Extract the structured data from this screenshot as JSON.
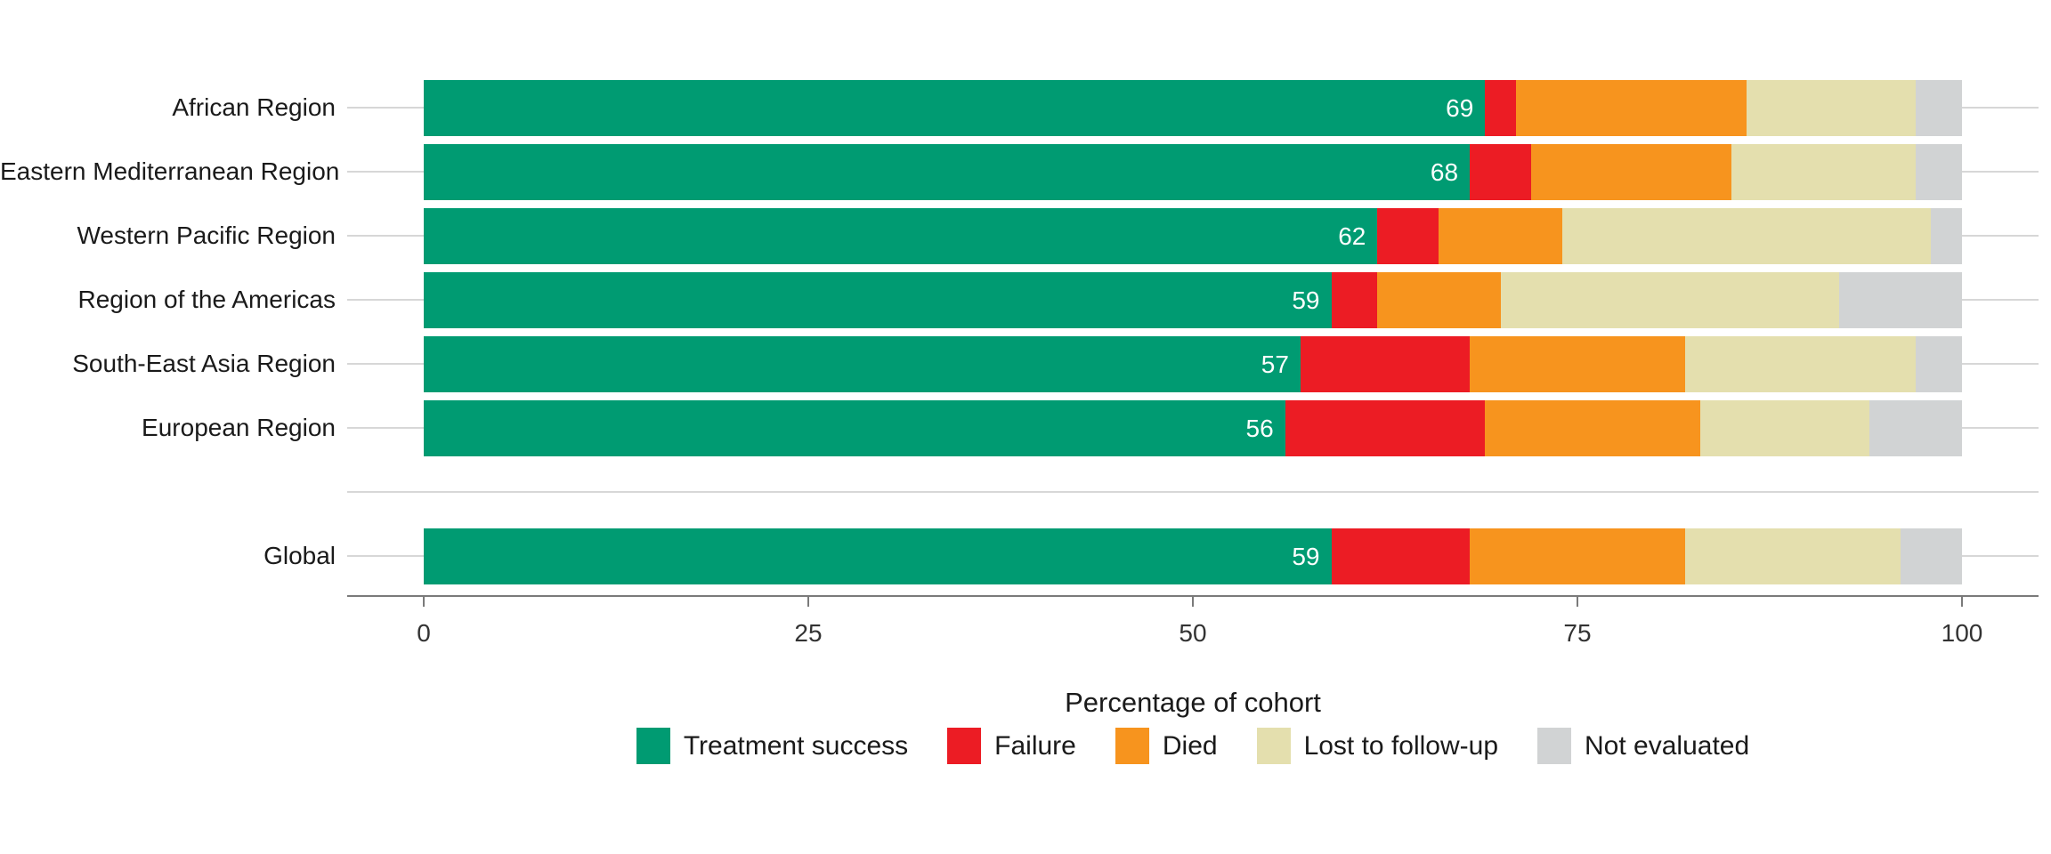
{
  "chart_data": {
    "type": "bar",
    "orientation": "horizontal",
    "stacked": true,
    "xlabel": "Percentage of cohort",
    "xlim": [
      0,
      100
    ],
    "xticks": [
      0,
      25,
      50,
      75,
      100
    ],
    "grid": "horizontal category lines",
    "legend_position": "bottom",
    "categories": [
      "African Region",
      "Eastern Mediterranean Region",
      "Western Pacific Region",
      "Region of the Americas",
      "South-East Asia Region",
      "European Region",
      "Global"
    ],
    "gap_before_category": "Global",
    "series": [
      {
        "name": "Treatment success",
        "color": "#009B72",
        "values": [
          69,
          68,
          62,
          59,
          57,
          56,
          59
        ],
        "labels_shown": true,
        "label_color": "#ffffff"
      },
      {
        "name": "Failure",
        "color": "#EC1C24",
        "values": [
          2,
          4,
          4,
          3,
          11,
          13,
          9
        ],
        "labels_shown": false
      },
      {
        "name": "Died",
        "color": "#F7941E",
        "values": [
          15,
          13,
          8,
          8,
          14,
          14,
          14
        ],
        "labels_shown": false
      },
      {
        "name": "Lost to follow-up",
        "color": "#E4DFAE",
        "values": [
          11,
          12,
          24,
          22,
          15,
          11,
          14
        ],
        "labels_shown": false
      },
      {
        "name": "Not evaluated",
        "color": "#D1D3D4",
        "values": [
          3,
          3,
          2,
          8,
          3,
          6,
          4
        ],
        "labels_shown": false
      }
    ],
    "colors": {
      "gridline": "#d7d7d7",
      "axis_line": "#7a7a7a",
      "text": "#1a1a1a"
    }
  }
}
